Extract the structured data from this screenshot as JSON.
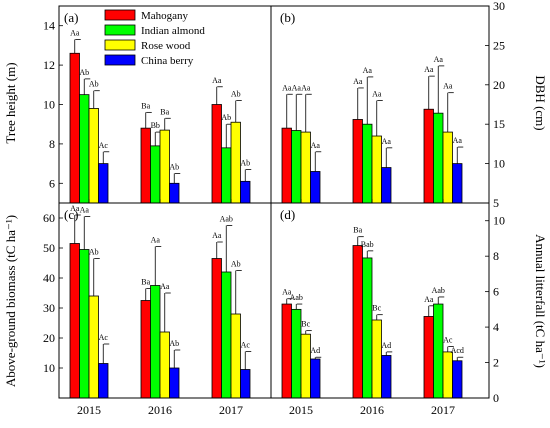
{
  "colors": {
    "Mahogany": "#ff0000",
    "Indian almond": "#00ff00",
    "Rose wood": "#ffff00",
    "China berry": "#0000ff"
  },
  "chart_data": [
    {
      "panel": "(a)",
      "type": "bar",
      "categories": [
        "2015",
        "2016",
        "2017"
      ],
      "ylabel": "Tree height (m)",
      "ylim": [
        5,
        15
      ],
      "yticks": [
        6,
        8,
        10,
        12,
        14
      ],
      "legend": "top-left",
      "series": [
        {
          "name": "Mahogany",
          "values": [
            12.6,
            8.8,
            10.0
          ],
          "errors": [
            0.7,
            0.8,
            0.9
          ],
          "labels": [
            "Aa",
            "Ba",
            "Aa"
          ]
        },
        {
          "name": "Indian almond",
          "values": [
            10.5,
            7.9,
            7.8
          ],
          "errors": [
            0.8,
            0.7,
            1.2
          ],
          "labels": [
            "Ab",
            "Bb",
            "Ab"
          ]
        },
        {
          "name": "Rose wood",
          "values": [
            9.8,
            8.7,
            9.1
          ],
          "errors": [
            0.9,
            0.6,
            1.1
          ],
          "labels": [
            "Ab",
            "Ba",
            "Ab"
          ]
        },
        {
          "name": "China berry",
          "values": [
            7.0,
            6.0,
            6.1
          ],
          "errors": [
            0.6,
            0.5,
            0.6
          ],
          "labels": [
            "Ac",
            "Ab",
            "Ab"
          ]
        }
      ]
    },
    {
      "panel": "(b)",
      "type": "bar",
      "categories": [
        "2015",
        "2016",
        "2017"
      ],
      "ylabel": "DBH (cm)",
      "ylim": [
        5,
        30
      ],
      "yticks": [
        5,
        10,
        15,
        20,
        25,
        30
      ],
      "series": [
        {
          "name": "Mahogany",
          "values": [
            14.5,
            15.6,
            16.9
          ],
          "errors": [
            4.3,
            4.0,
            4.2
          ],
          "labels": [
            "Aa",
            "Aa",
            "Aa"
          ]
        },
        {
          "name": "Indian almond",
          "values": [
            14.2,
            15.0,
            16.4
          ],
          "errors": [
            4.6,
            6.0,
            6.0
          ],
          "labels": [
            "Aa",
            "Aa",
            "Aa"
          ]
        },
        {
          "name": "Rose wood",
          "values": [
            14.0,
            13.5,
            14.0
          ],
          "errors": [
            4.8,
            4.5,
            5.0
          ],
          "labels": [
            "Aa",
            "Aa",
            "Aa"
          ]
        },
        {
          "name": "China berry",
          "values": [
            9.0,
            9.5,
            10.0
          ],
          "errors": [
            2.5,
            2.5,
            2.1
          ],
          "labels": [
            "Aa",
            "Aa",
            "Aa"
          ]
        }
      ]
    },
    {
      "panel": "(c)",
      "type": "bar",
      "categories": [
        "2015",
        "2016",
        "2017"
      ],
      "ylabel": "Above-ground biomass (tC ha⁻¹)",
      "ylim": [
        0,
        65
      ],
      "yticks": [
        10,
        20,
        30,
        40,
        50,
        60
      ],
      "series": [
        {
          "name": "Mahogany",
          "values": [
            51.5,
            32.5,
            46.5
          ],
          "errors": [
            9.5,
            4.0,
            5.5
          ],
          "labels": [
            "Aa",
            "Ba",
            "Aa"
          ]
        },
        {
          "name": "Indian almond",
          "values": [
            49.5,
            37.5,
            42.0
          ],
          "errors": [
            11.0,
            13.0,
            15.5
          ],
          "labels": [
            "Aa",
            "Aa",
            "Aab"
          ]
        },
        {
          "name": "Rose wood",
          "values": [
            34.0,
            22.0,
            28.0
          ],
          "errors": [
            12.5,
            13.0,
            14.5
          ],
          "labels": [
            "Ab",
            "Aa",
            "Ab"
          ]
        },
        {
          "name": "China berry",
          "values": [
            11.5,
            10.0,
            9.5
          ],
          "errors": [
            6.5,
            6.0,
            6.0
          ],
          "labels": [
            "Ac",
            "Ab",
            "Ac"
          ]
        }
      ]
    },
    {
      "panel": "(d)",
      "type": "bar",
      "categories": [
        "2015",
        "2016",
        "2017"
      ],
      "ylabel": "Annual litterfall (tC ha⁻¹)",
      "ylim": [
        0,
        11
      ],
      "yticks": [
        0,
        2,
        4,
        6,
        8,
        10
      ],
      "series": [
        {
          "name": "Mahogany",
          "values": [
            5.3,
            8.6,
            4.6
          ],
          "errors": [
            0.3,
            0.5,
            0.6
          ],
          "labels": [
            "Aa",
            "Ba",
            "Aa"
          ]
        },
        {
          "name": "Indian almond",
          "values": [
            5.0,
            7.9,
            5.3
          ],
          "errors": [
            0.3,
            0.4,
            0.4
          ],
          "labels": [
            "Aab",
            "Bab",
            "Aab"
          ]
        },
        {
          "name": "Rose wood",
          "values": [
            3.6,
            4.4,
            2.6
          ],
          "errors": [
            0.2,
            0.3,
            0.3
          ],
          "labels": [
            "Bc",
            "Bc",
            "Ac"
          ]
        },
        {
          "name": "China berry",
          "values": [
            2.2,
            2.4,
            2.1
          ],
          "errors": [
            0.1,
            0.2,
            0.2
          ],
          "labels": [
            "Ad",
            "Ad",
            "Acd"
          ]
        }
      ]
    }
  ]
}
